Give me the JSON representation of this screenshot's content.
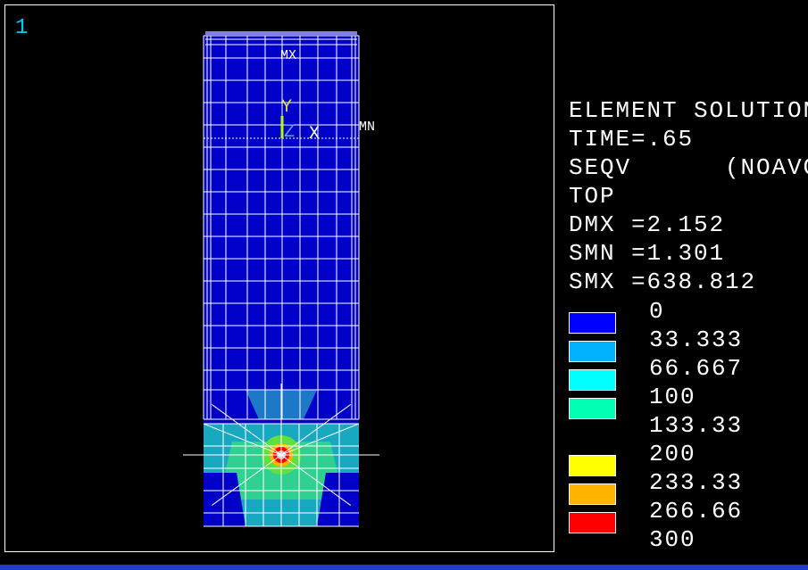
{
  "viewport": {
    "number": "1"
  },
  "model": {
    "max_label": "MX",
    "min_label": "MN",
    "axes": [
      "Y",
      "Z",
      "X"
    ]
  },
  "info": [
    "ELEMENT SOLUTION",
    "TIME=.65",
    "SEQV      (NOAVG)",
    "TOP",
    "DMX =2.152",
    "SMN =1.301",
    "SMX =638.812"
  ],
  "legend": [
    {
      "label": "0",
      "color": "#0000ff"
    },
    {
      "label": "33.333",
      "color": "#00b2ff"
    },
    {
      "label": "66.667",
      "color": "#00ffff"
    },
    {
      "label": "100",
      "color": "#00ffb2"
    },
    {
      "label": "133.33"
    },
    {
      "label": "200",
      "color": "#ffff00"
    },
    {
      "label": "233.33",
      "color": "#ffb200"
    },
    {
      "label": "266.66",
      "color": "#ff0000"
    },
    {
      "label": "300"
    }
  ]
}
